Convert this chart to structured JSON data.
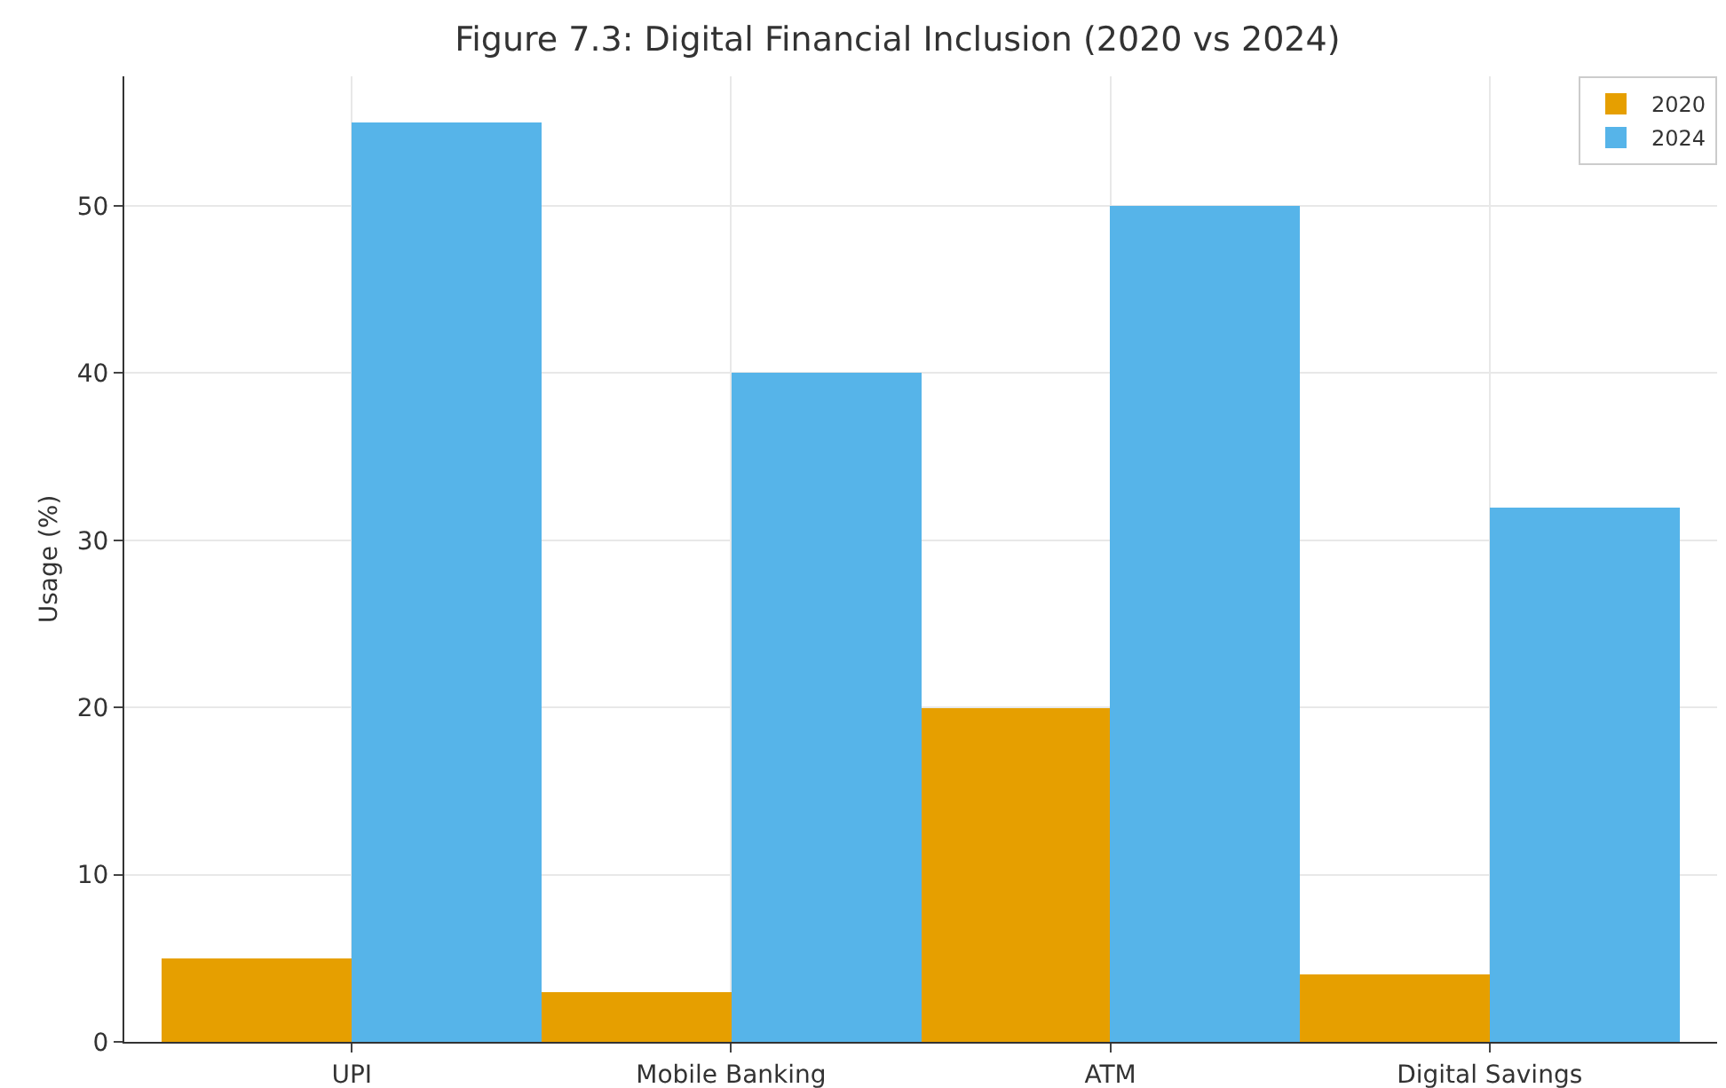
{
  "chart_data": {
    "type": "bar",
    "title": "Figure 7.3: Digital Financial Inclusion (2020 vs 2024)",
    "ylabel": "Usage (%)",
    "categories": [
      "UPI",
      "Mobile Banking",
      "ATM",
      "Digital Savings"
    ],
    "series": [
      {
        "name": "2020",
        "color": "#e69f00",
        "values": [
          5,
          3,
          20,
          4
        ]
      },
      {
        "name": "2024",
        "color": "#56b4e9",
        "values": [
          55,
          40,
          50,
          32
        ]
      }
    ],
    "ylim": [
      0,
      57.75
    ],
    "yticks": [
      0,
      10,
      20,
      30,
      40,
      50
    ],
    "grid": true,
    "legend": "top right"
  }
}
